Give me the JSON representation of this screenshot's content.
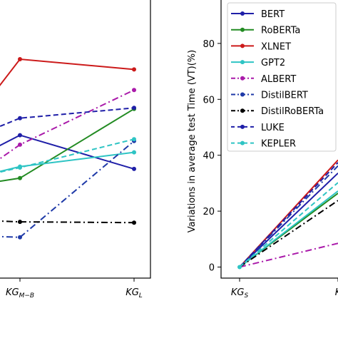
{
  "chart_data": [
    {
      "type": "line",
      "x_categories": [
        "",
        "KG_M-B",
        "KG_L"
      ],
      "x_tick_labels": [
        {
          "base": "KG",
          "sub": "M-B"
        },
        {
          "base": "KG",
          "sub": "L"
        }
      ],
      "series": [
        {
          "name": "BERT",
          "color": "#1f1fa8",
          "linestyle": "solid",
          "marker": "circle",
          "values": [
            54.1,
            59.4,
            46.6
          ]
        },
        {
          "name": "RoBERTa",
          "color": "#228b22",
          "linestyle": "solid",
          "marker": "circle",
          "values": [
            41.5,
            43.1,
            69.4
          ]
        },
        {
          "name": "XLNET",
          "color": "#cc1a1a",
          "linestyle": "solid",
          "marker": "circle",
          "values": [
            74.9,
            88.3,
            84.4
          ]
        },
        {
          "name": "GPT2",
          "color": "#2ec4c4",
          "linestyle": "solid",
          "marker": "circle",
          "values": [
            45.0,
            47.5,
            52.9
          ]
        },
        {
          "name": "ALBERT",
          "color": "#aa1aaa",
          "linestyle": "dashdot",
          "marker": "circle",
          "values": [
            48.6,
            55.8,
            76.6
          ]
        },
        {
          "name": "DistilBERT",
          "color": "#1f3aa8",
          "linestyle": "dashdot",
          "marker": "circle",
          "values": [
            21.0,
            20.6,
            57.2
          ]
        },
        {
          "name": "DistilRoBERTa",
          "color": "#000000",
          "linestyle": "dashdot",
          "marker": "circle",
          "values": [
            26.9,
            26.5,
            26.2
          ]
        },
        {
          "name": "LUKE",
          "color": "#1f1fa8",
          "linestyle": "dashed",
          "marker": "circle",
          "values": [
            61.7,
            65.9,
            69.8
          ]
        },
        {
          "name": "KEPLER",
          "color": "#2ec4c4",
          "linestyle": "dashed",
          "marker": "circle",
          "values": [
            44.8,
            47.1,
            57.9
          ]
        }
      ]
    },
    {
      "type": "line",
      "ylabel": "Variations in average test Time (VT)(%)",
      "y_ticks": [
        0,
        20,
        40,
        60,
        80
      ],
      "x_tick_labels": [
        {
          "base": "KG",
          "sub": "S"
        },
        {
          "base": "K",
          "sub": ""
        }
      ],
      "legend_position": "upper-left",
      "series": [
        {
          "name": "BERT",
          "color": "#1f1fa8",
          "linestyle": "solid",
          "marker": "circle",
          "values": [
            0,
            33.6
          ]
        },
        {
          "name": "RoBERTa",
          "color": "#228b22",
          "linestyle": "solid",
          "marker": "circle",
          "values": [
            0,
            26.4
          ]
        },
        {
          "name": "XLNET",
          "color": "#cc1a1a",
          "linestyle": "solid",
          "marker": "circle",
          "values": [
            0,
            38.3
          ]
        },
        {
          "name": "GPT2",
          "color": "#2ec4c4",
          "linestyle": "solid",
          "marker": "circle",
          "values": [
            0,
            27.2
          ]
        },
        {
          "name": "ALBERT",
          "color": "#aa1aaa",
          "linestyle": "dashdot",
          "marker": "circle",
          "values": [
            0,
            8.5
          ]
        },
        {
          "name": "DistilBERT",
          "color": "#1f3aa8",
          "linestyle": "dashdot",
          "marker": "circle",
          "values": [
            0,
            36.2
          ]
        },
        {
          "name": "DistilRoBERTa",
          "color": "#000000",
          "linestyle": "dashdot",
          "marker": "circle",
          "values": [
            0,
            23.8
          ]
        },
        {
          "name": "LUKE",
          "color": "#1f1fa8",
          "linestyle": "dashed",
          "marker": "circle",
          "values": [
            0,
            37.4
          ]
        },
        {
          "name": "KEPLER",
          "color": "#2ec4c4",
          "linestyle": "dashed",
          "marker": "circle",
          "values": [
            0,
            30.2
          ]
        }
      ]
    }
  ]
}
